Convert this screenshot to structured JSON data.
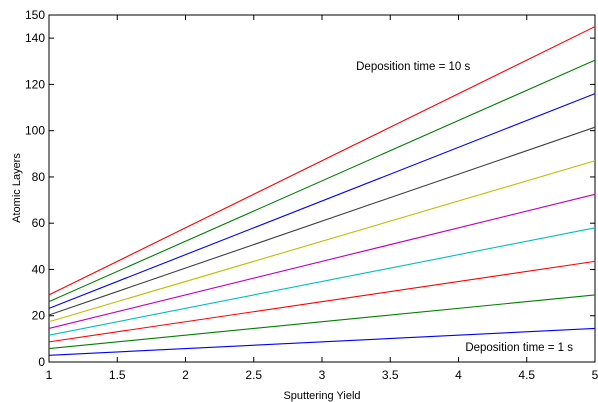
{
  "chart_data": {
    "type": "line",
    "xlabel": "Sputtering Yield",
    "ylabel": "Atomic Layers",
    "xlim": [
      1,
      5
    ],
    "ylim": [
      0,
      150
    ],
    "xticks": [
      1,
      1.5,
      2,
      2.5,
      3,
      3.5,
      4,
      4.5,
      5
    ],
    "xtick_labels": [
      "1",
      "1.5",
      "2",
      "2.5",
      "3",
      "3.5",
      "4",
      "4.5",
      "5"
    ],
    "yticks": [
      0,
      20,
      40,
      60,
      80,
      100,
      120,
      140,
      150
    ],
    "ytick_labels": [
      "0",
      "20",
      "40",
      "60",
      "80",
      "100",
      "120",
      "140",
      "150"
    ],
    "grid": false,
    "annotations": [
      {
        "text": "Deposition time = 10 s",
        "x": 3.25,
        "y": 128
      },
      {
        "text": "Deposition time = 1 s",
        "x": 4.05,
        "y": 6.5
      }
    ],
    "x": [
      1,
      5
    ],
    "series": [
      {
        "color": "#0000ff",
        "values": [
          2.9,
          14.5
        ]
      },
      {
        "color": "#008000",
        "values": [
          5.8,
          29.0
        ]
      },
      {
        "color": "#ff0000",
        "values": [
          8.7,
          43.5
        ]
      },
      {
        "color": "#00bfbf",
        "values": [
          11.6,
          58.0
        ]
      },
      {
        "color": "#bf00bf",
        "values": [
          14.5,
          72.5
        ]
      },
      {
        "color": "#bfbf00",
        "values": [
          17.4,
          87.0
        ]
      },
      {
        "color": "#404040",
        "values": [
          20.3,
          101.5
        ]
      },
      {
        "color": "#0000ff",
        "values": [
          23.2,
          116.0
        ]
      },
      {
        "color": "#008000",
        "values": [
          26.1,
          130.5
        ]
      },
      {
        "color": "#ff0000",
        "values": [
          29.0,
          145.0
        ]
      }
    ]
  }
}
